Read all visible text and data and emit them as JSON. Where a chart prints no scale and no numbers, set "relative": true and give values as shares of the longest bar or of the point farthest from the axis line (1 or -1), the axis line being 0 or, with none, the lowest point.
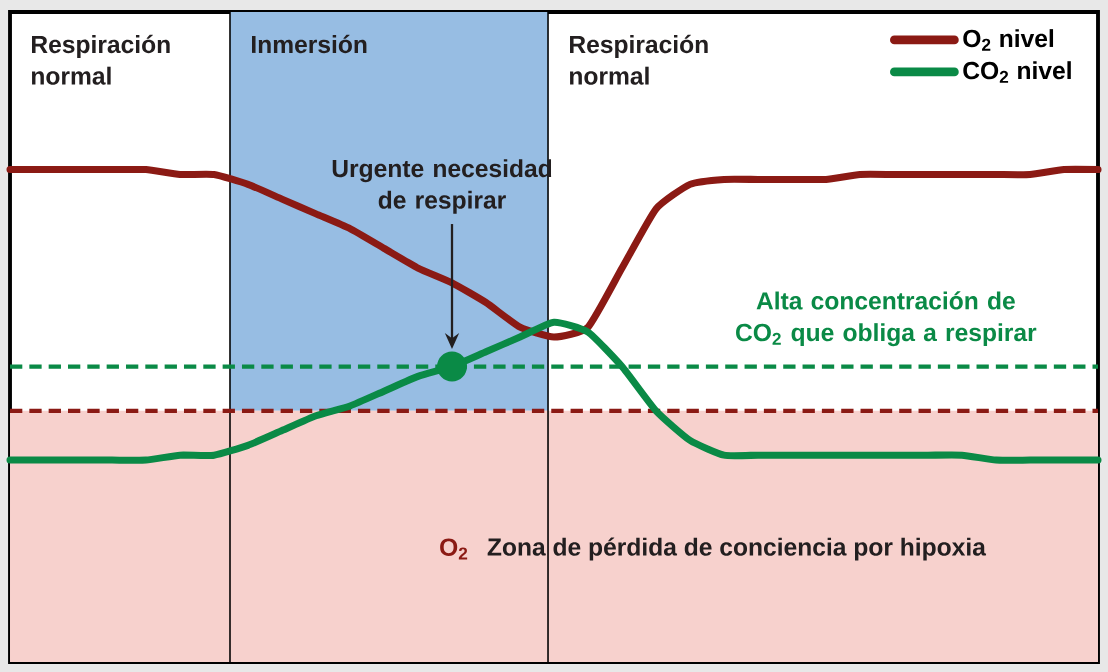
{
  "chart_data": {
    "type": "line",
    "relative": true,
    "categories": [
      null,
      null,
      null,
      null,
      null,
      null,
      null,
      null,
      null,
      null,
      null,
      null,
      null,
      null,
      null,
      null,
      null,
      null,
      null,
      null,
      null,
      null,
      null,
      null,
      null,
      null,
      null,
      null,
      null,
      null,
      null,
      null,
      null
    ],
    "series": [
      {
        "name": "O$_{2}$ nivel",
        "color": "#8b1a14",
        "values": [
          1,
          1,
          1,
          1,
          1,
          0.99,
          0.99,
          0.97,
          0.94,
          0.91,
          0.88,
          0.84,
          0.8,
          0.77,
          0.73,
          0.68,
          0.66,
          0.68,
          0.8,
          0.92,
          0.97,
          0.98,
          0.98,
          0.98,
          0.98,
          0.99,
          0.99,
          0.99,
          0.99,
          0.99,
          0.99,
          1,
          1
        ]
      },
      {
        "name": "CO$_{2}$ nivel",
        "color": "#0a8a46",
        "values": [
          0.41,
          0.41,
          0.41,
          0.41,
          0.41,
          0.42,
          0.42,
          0.44,
          0.47,
          0.5,
          0.52,
          0.55,
          0.58,
          0.6,
          0.63,
          0.66,
          0.69,
          0.67,
          0.6,
          0.51,
          0.45,
          0.42,
          0.42,
          0.42,
          0.42,
          0.42,
          0.42,
          0.42,
          0.42,
          0.41,
          0.41,
          0.41,
          0.41
        ]
      }
    ],
    "bands": [
      {
        "axis": "y",
        "from": 0,
        "to": 0.51,
        "label": "Zona de pérdida de conciencia por hipoxia",
        "color": "#f7d1cd"
      }
    ],
    "ref_lines": [
      {
        "axis": "y",
        "value": 0.6,
        "label": "Alta concentración de CO$_{2}$ que obliga a respirar",
        "color": "#0a8a46",
        "line_style": "dashed"
      },
      {
        "axis": "y",
        "value": 0.51,
        "label": "O$_{2}$",
        "color": "#8b1a14",
        "line_style": "dashed"
      }
    ],
    "annotations": [
      "Respiración normal",
      "Inmersión",
      "Respiración normal",
      "Urgente necesidad de respirar"
    ],
    "legend": "top right"
  }
}
